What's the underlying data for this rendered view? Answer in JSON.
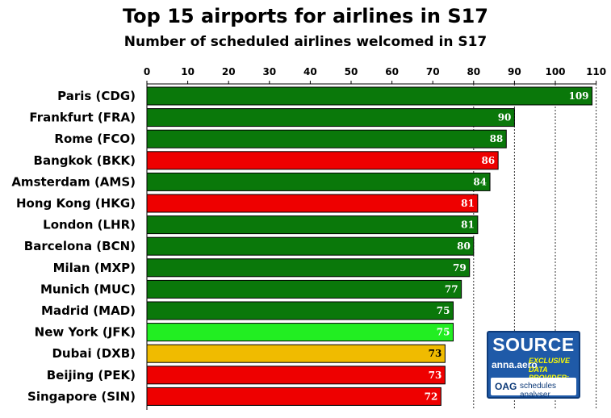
{
  "chart_data": {
    "type": "bar",
    "orientation": "horizontal",
    "title": "Top 15 airports for airlines in S17",
    "subtitle": "Number of scheduled airlines welcomed in S17",
    "xlim": [
      0,
      110
    ],
    "x_ticks": [
      0,
      10,
      20,
      30,
      40,
      50,
      60,
      70,
      80,
      90,
      100,
      110
    ],
    "x_axis_position": "top",
    "grid": "vertical dotted lines at 80, 90, 100, 110",
    "categories": [
      "Paris (CDG)",
      "Frankfurt (FRA)",
      "Rome (FCO)",
      "Bangkok (BKK)",
      "Amsterdam (AMS)",
      "Hong Kong (HKG)",
      "London (LHR)",
      "Barcelona (BCN)",
      "Milan (MXP)",
      "Munich (MUC)",
      "Madrid (MAD)",
      "New York (JFK)",
      "Dubai (DXB)",
      "Beijing (PEK)",
      "Singapore (SIN)"
    ],
    "values": [
      109,
      90,
      88,
      86,
      84,
      81,
      81,
      80,
      79,
      77,
      75,
      75,
      73,
      73,
      72
    ],
    "bar_colors": [
      "#0a780a",
      "#0a780a",
      "#0a780a",
      "#ee0000",
      "#0a780a",
      "#ee0000",
      "#0a780a",
      "#0a780a",
      "#0a780a",
      "#0a780a",
      "#0a780a",
      "#22ee22",
      "#f0bb00",
      "#ee0000",
      "#ee0000"
    ],
    "label_colors": [
      "#ffffff",
      "#ffffff",
      "#ffffff",
      "#ffffff",
      "#ffffff",
      "#ffffff",
      "#ffffff",
      "#ffffff",
      "#ffffff",
      "#ffffff",
      "#ffffff",
      "#ffffff",
      "#000000",
      "#ffffff",
      "#ffffff"
    ]
  },
  "source_badge": {
    "title": "SOURCE",
    "brand": "anna.aero",
    "line1": "EXCLUSIVE",
    "line2": "DATA PROVIDER:",
    "oag": "OAG",
    "product": "schedules analyser"
  }
}
